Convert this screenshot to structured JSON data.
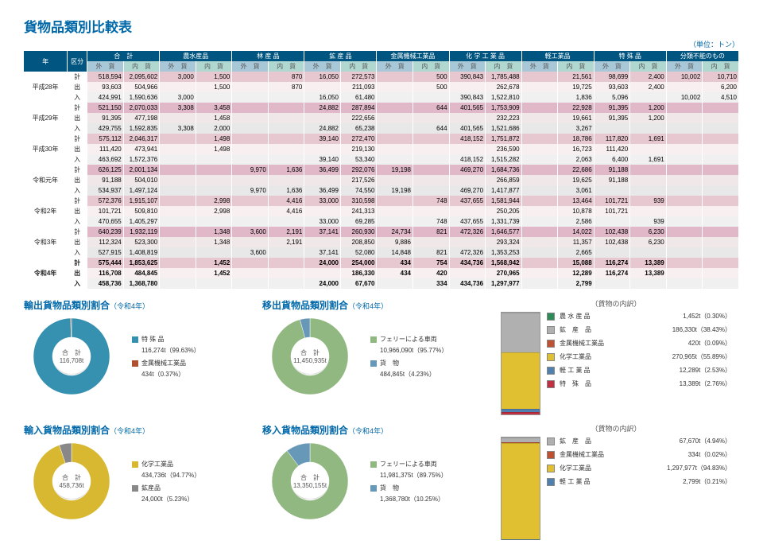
{
  "title": "貨物品類別比較表",
  "unit": "（単位：トン）",
  "columns_top": [
    "年",
    "区分",
    "合　計",
    "農水産品",
    "林 産 品",
    "鉱 産 品",
    "金属機械工業品",
    "化 学 工 業 品",
    "軽工業品",
    "特 殊 品",
    "分類不能のもの"
  ],
  "sub_pair": [
    "外　貨",
    "内　貨"
  ],
  "colwidths": {
    "year": 48,
    "kubun": 22,
    "data": 40
  },
  "years": [
    {
      "year": "平成28年",
      "bold": false,
      "rows": [
        {
          "k": "計",
          "c": "kei",
          "v": [
            "518,594",
            "2,095,602",
            "3,000",
            "1,500",
            "",
            "870",
            "16,050",
            "272,573",
            "",
            "500",
            "390,843",
            "1,785,488",
            "",
            "21,561",
            "98,699",
            "2,400",
            "10,002",
            "10,710"
          ]
        },
        {
          "k": "出",
          "c": "out",
          "v": [
            "93,603",
            "504,966",
            "",
            "1,500",
            "",
            "870",
            "",
            "211,093",
            "",
            "500",
            "",
            "262,678",
            "",
            "19,725",
            "93,603",
            "2,400",
            "",
            "6,200"
          ]
        },
        {
          "k": "入",
          "c": "in",
          "v": [
            "424,991",
            "1,590,636",
            "3,000",
            "",
            "",
            "",
            "16,050",
            "61,480",
            "",
            "",
            "390,843",
            "1,522,810",
            "",
            "1,836",
            "5,096",
            "",
            "10,002",
            "4,510"
          ]
        }
      ]
    },
    {
      "year": "平成29年",
      "bold": false,
      "rows": [
        {
          "k": "計",
          "c": "kei",
          "v": [
            "521,150",
            "2,070,033",
            "3,308",
            "3,458",
            "",
            "",
            "24,882",
            "287,894",
            "",
            "644",
            "401,565",
            "1,753,909",
            "",
            "22,928",
            "91,395",
            "1,200",
            "",
            ""
          ]
        },
        {
          "k": "出",
          "c": "out",
          "v": [
            "91,395",
            "477,198",
            "",
            "1,458",
            "",
            "",
            "",
            "222,656",
            "",
            "",
            "",
            "232,223",
            "",
            "19,661",
            "91,395",
            "1,200",
            "",
            ""
          ]
        },
        {
          "k": "入",
          "c": "in",
          "v": [
            "429,755",
            "1,592,835",
            "3,308",
            "2,000",
            "",
            "",
            "24,882",
            "65,238",
            "",
            "644",
            "401,565",
            "1,521,686",
            "",
            "3,267",
            "",
            "",
            "",
            ""
          ]
        }
      ]
    },
    {
      "year": "平成30年",
      "bold": false,
      "rows": [
        {
          "k": "計",
          "c": "kei",
          "v": [
            "575,112",
            "2,046,317",
            "",
            "1,498",
            "",
            "",
            "39,140",
            "272,470",
            "",
            "",
            "418,152",
            "1,751,872",
            "",
            "18,786",
            "117,820",
            "1,691",
            "",
            ""
          ]
        },
        {
          "k": "出",
          "c": "out",
          "v": [
            "111,420",
            "473,941",
            "",
            "1,498",
            "",
            "",
            "",
            "219,130",
            "",
            "",
            "",
            "236,590",
            "",
            "16,723",
            "111,420",
            "",
            "",
            ""
          ]
        },
        {
          "k": "入",
          "c": "in",
          "v": [
            "463,692",
            "1,572,376",
            "",
            "",
            "",
            "",
            "39,140",
            "53,340",
            "",
            "",
            "418,152",
            "1,515,282",
            "",
            "2,063",
            "6,400",
            "1,691",
            "",
            ""
          ]
        }
      ]
    },
    {
      "year": "令和元年",
      "bold": false,
      "rows": [
        {
          "k": "計",
          "c": "kei",
          "v": [
            "626,125",
            "2,001,134",
            "",
            "",
            "9,970",
            "1,636",
            "36,499",
            "292,076",
            "19,198",
            "",
            "469,270",
            "1,684,736",
            "",
            "22,686",
            "91,188",
            "",
            "",
            ""
          ]
        },
        {
          "k": "出",
          "c": "out",
          "v": [
            "91,188",
            "504,010",
            "",
            "",
            "",
            "",
            "",
            "217,526",
            "",
            "",
            "",
            "266,859",
            "",
            "19,625",
            "91,188",
            "",
            "",
            ""
          ]
        },
        {
          "k": "入",
          "c": "in",
          "v": [
            "534,937",
            "1,497,124",
            "",
            "",
            "9,970",
            "1,636",
            "36,499",
            "74,550",
            "19,198",
            "",
            "469,270",
            "1,417,877",
            "",
            "3,061",
            "",
            "",
            "",
            ""
          ]
        }
      ]
    },
    {
      "year": "令和2年",
      "bold": false,
      "rows": [
        {
          "k": "計",
          "c": "kei",
          "v": [
            "572,376",
            "1,915,107",
            "",
            "2,998",
            "",
            "4,416",
            "33,000",
            "310,598",
            "",
            "748",
            "437,655",
            "1,581,944",
            "",
            "13,464",
            "101,721",
            "939",
            "",
            ""
          ]
        },
        {
          "k": "出",
          "c": "out",
          "v": [
            "101,721",
            "509,810",
            "",
            "2,998",
            "",
            "4,416",
            "",
            "241,313",
            "",
            "",
            "",
            "250,205",
            "",
            "10,878",
            "101,721",
            "",
            "",
            ""
          ]
        },
        {
          "k": "入",
          "c": "in",
          "v": [
            "470,655",
            "1,405,297",
            "",
            "",
            "",
            "",
            "33,000",
            "69,285",
            "",
            "748",
            "437,655",
            "1,331,739",
            "",
            "2,586",
            "",
            "939",
            "",
            ""
          ]
        }
      ]
    },
    {
      "year": "令和3年",
      "bold": false,
      "rows": [
        {
          "k": "計",
          "c": "kei",
          "v": [
            "640,239",
            "1,932,119",
            "",
            "1,348",
            "3,600",
            "2,191",
            "37,141",
            "260,930",
            "24,734",
            "821",
            "472,326",
            "1,646,577",
            "",
            "14,022",
            "102,438",
            "6,230",
            "",
            ""
          ]
        },
        {
          "k": "出",
          "c": "out",
          "v": [
            "112,324",
            "523,300",
            "",
            "1,348",
            "",
            "2,191",
            "",
            "208,850",
            "9,886",
            "",
            "",
            "293,324",
            "",
            "11,357",
            "102,438",
            "6,230",
            "",
            ""
          ]
        },
        {
          "k": "入",
          "c": "in",
          "v": [
            "527,915",
            "1,408,819",
            "",
            "",
            "3,600",
            "",
            "37,141",
            "52,080",
            "14,848",
            "821",
            "472,326",
            "1,353,253",
            "",
            "2,665",
            "",
            "",
            "",
            ""
          ]
        }
      ]
    },
    {
      "year": "令和4年",
      "bold": true,
      "rows": [
        {
          "k": "計",
          "c": "kei",
          "v": [
            "575,444",
            "1,853,625",
            "",
            "1,452",
            "",
            "",
            "24,000",
            "254,000",
            "434",
            "754",
            "434,736",
            "1,568,942",
            "",
            "15,088",
            "116,274",
            "13,389",
            "",
            ""
          ]
        },
        {
          "k": "出",
          "c": "out",
          "v": [
            "116,708",
            "484,845",
            "",
            "1,452",
            "",
            "",
            "",
            "186,330",
            "434",
            "420",
            "",
            "270,965",
            "",
            "12,289",
            "116,274",
            "13,389",
            "",
            ""
          ]
        },
        {
          "k": "入",
          "c": "in",
          "v": [
            "458,736",
            "1,368,780",
            "",
            "",
            "",
            "",
            "24,000",
            "67,670",
            "",
            "334",
            "434,736",
            "1,297,977",
            "",
            "2,799",
            "",
            "",
            "",
            ""
          ]
        }
      ]
    }
  ],
  "charts": {
    "export_types": {
      "title": "輸出貨物品類別割合",
      "sub": "（令和4年）",
      "center_l1": "合　計",
      "center_l2": "116,708t",
      "slices": [
        {
          "label": "特 殊 品",
          "value": "116,274t（99.63%）",
          "pct": 99.63,
          "color": "#3690b0"
        },
        {
          "label": "金属機械工業品",
          "value": "434t（0.37%）",
          "pct": 0.37,
          "color": "#b05030"
        }
      ]
    },
    "import_types": {
      "title": "輸入貨物品類別割合",
      "sub": "（令和4年）",
      "center_l1": "合　計",
      "center_l2": "458,736t",
      "slices": [
        {
          "label": "化学工業品",
          "value": "434,736t（94.77%）",
          "pct": 94.77,
          "color": "#d8b830"
        },
        {
          "label": "鉱産品",
          "value": "24,000t（5.23%）",
          "pct": 5.23,
          "color": "#888888"
        }
      ]
    },
    "move_out": {
      "title": "移出貨物品類別割合",
      "sub": "（令和4年）",
      "center_l1": "合　計",
      "center_l2": "11,450,935t",
      "slices": [
        {
          "label": "フェリーによる車両",
          "value": "10,966,090t（95.77%）",
          "pct": 95.77,
          "color": "#90b880"
        },
        {
          "label": "貨　物",
          "value": "484,845t（4.23%）",
          "pct": 4.23,
          "color": "#6898b8"
        }
      ]
    },
    "move_in": {
      "title": "移入貨物品類別割合",
      "sub": "（令和4年）",
      "center_l1": "合　計",
      "center_l2": "13,350,155t",
      "slices": [
        {
          "label": "フェリーによる車両",
          "value": "11,981,375t（89.75%）",
          "pct": 89.75,
          "color": "#90b880"
        },
        {
          "label": "貨　物",
          "value": "1,368,780t（10.25%）",
          "pct": 10.25,
          "color": "#6898b8"
        }
      ]
    },
    "stack_out": {
      "title": "（貨物の内訳）",
      "items": [
        {
          "label": "農 水 産 品",
          "value": "1,452t（0.30%）",
          "pct": 0.3,
          "color": "#2e8b57"
        },
        {
          "label": "鉱　産　品",
          "value": "186,330t（38.43%）",
          "pct": 38.43,
          "color": "#b0b0b0"
        },
        {
          "label": "金属機械工業品",
          "value": "420t（0.09%）",
          "pct": 0.09,
          "color": "#c05030"
        },
        {
          "label": "化学工業品",
          "value": "270,965t（55.89%）",
          "pct": 55.89,
          "color": "#e0c030"
        },
        {
          "label": "軽 工 業 品",
          "value": "12,289t（2.53%）",
          "pct": 2.53,
          "color": "#5080b0"
        },
        {
          "label": "特　殊　品",
          "value": "13,389t（2.76%）",
          "pct": 2.76,
          "color": "#c03040"
        }
      ]
    },
    "stack_in": {
      "title": "（貨物の内訳）",
      "items": [
        {
          "label": "鉱　産　品",
          "value": "67,670t（4.94%）",
          "pct": 4.94,
          "color": "#b0b0b0"
        },
        {
          "label": "金属機械工業品",
          "value": "334t（0.02%）",
          "pct": 0.02,
          "color": "#c05030"
        },
        {
          "label": "化学工業品",
          "value": "1,297,977t（94.83%）",
          "pct": 94.83,
          "color": "#e0c030"
        },
        {
          "label": "軽 工 業 品",
          "value": "2,799t（0.21%）",
          "pct": 0.21,
          "color": "#5080b0"
        }
      ]
    }
  },
  "colors": {
    "hdr_top": "#005680",
    "hdr_gai": "#a8c8d8",
    "hdr_nai": "#b0d8d0",
    "row_kei": "#e8c8d0",
    "row_out": "#f8f0f0",
    "row_in": "#f0f0f0"
  }
}
